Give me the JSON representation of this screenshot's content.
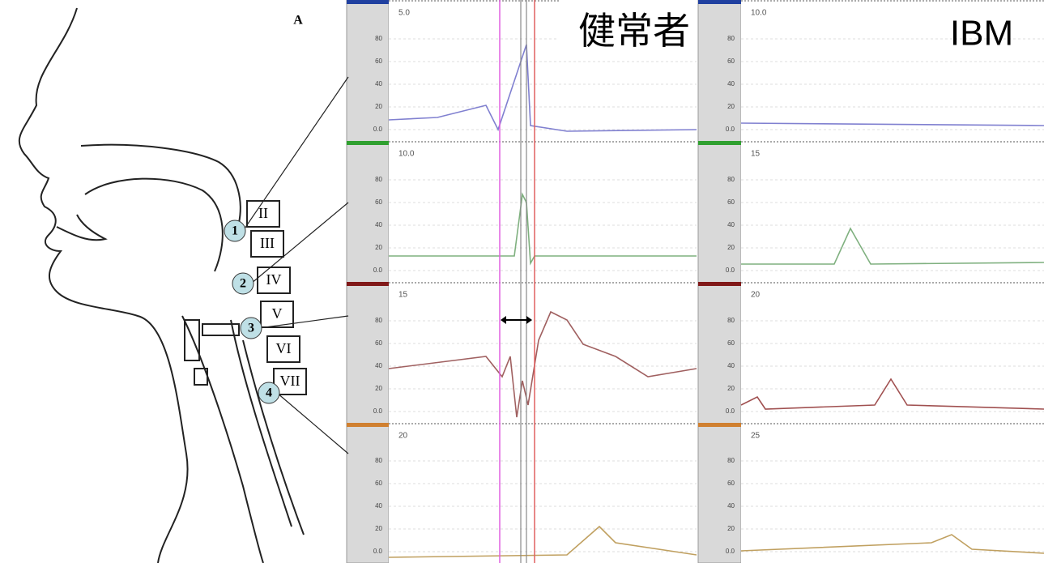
{
  "figure_label": "A",
  "vertebrae": [
    "II",
    "III",
    "IV",
    "V",
    "VI",
    "VII"
  ],
  "sensors": [
    "1",
    "2",
    "3",
    "4"
  ],
  "ticks": [
    "80",
    "60",
    "40",
    "20",
    "0.0"
  ],
  "panels": [
    {
      "title": "健常者",
      "channels": [
        {
          "scale": "5.0"
        },
        {
          "scale": "10.0"
        },
        {
          "scale": "15"
        },
        {
          "scale": "20"
        }
      ]
    },
    {
      "title": "IBM",
      "channels": [
        {
          "scale": "10.0"
        },
        {
          "scale": "15"
        },
        {
          "scale": "20"
        },
        {
          "scale": "25"
        }
      ]
    }
  ]
}
